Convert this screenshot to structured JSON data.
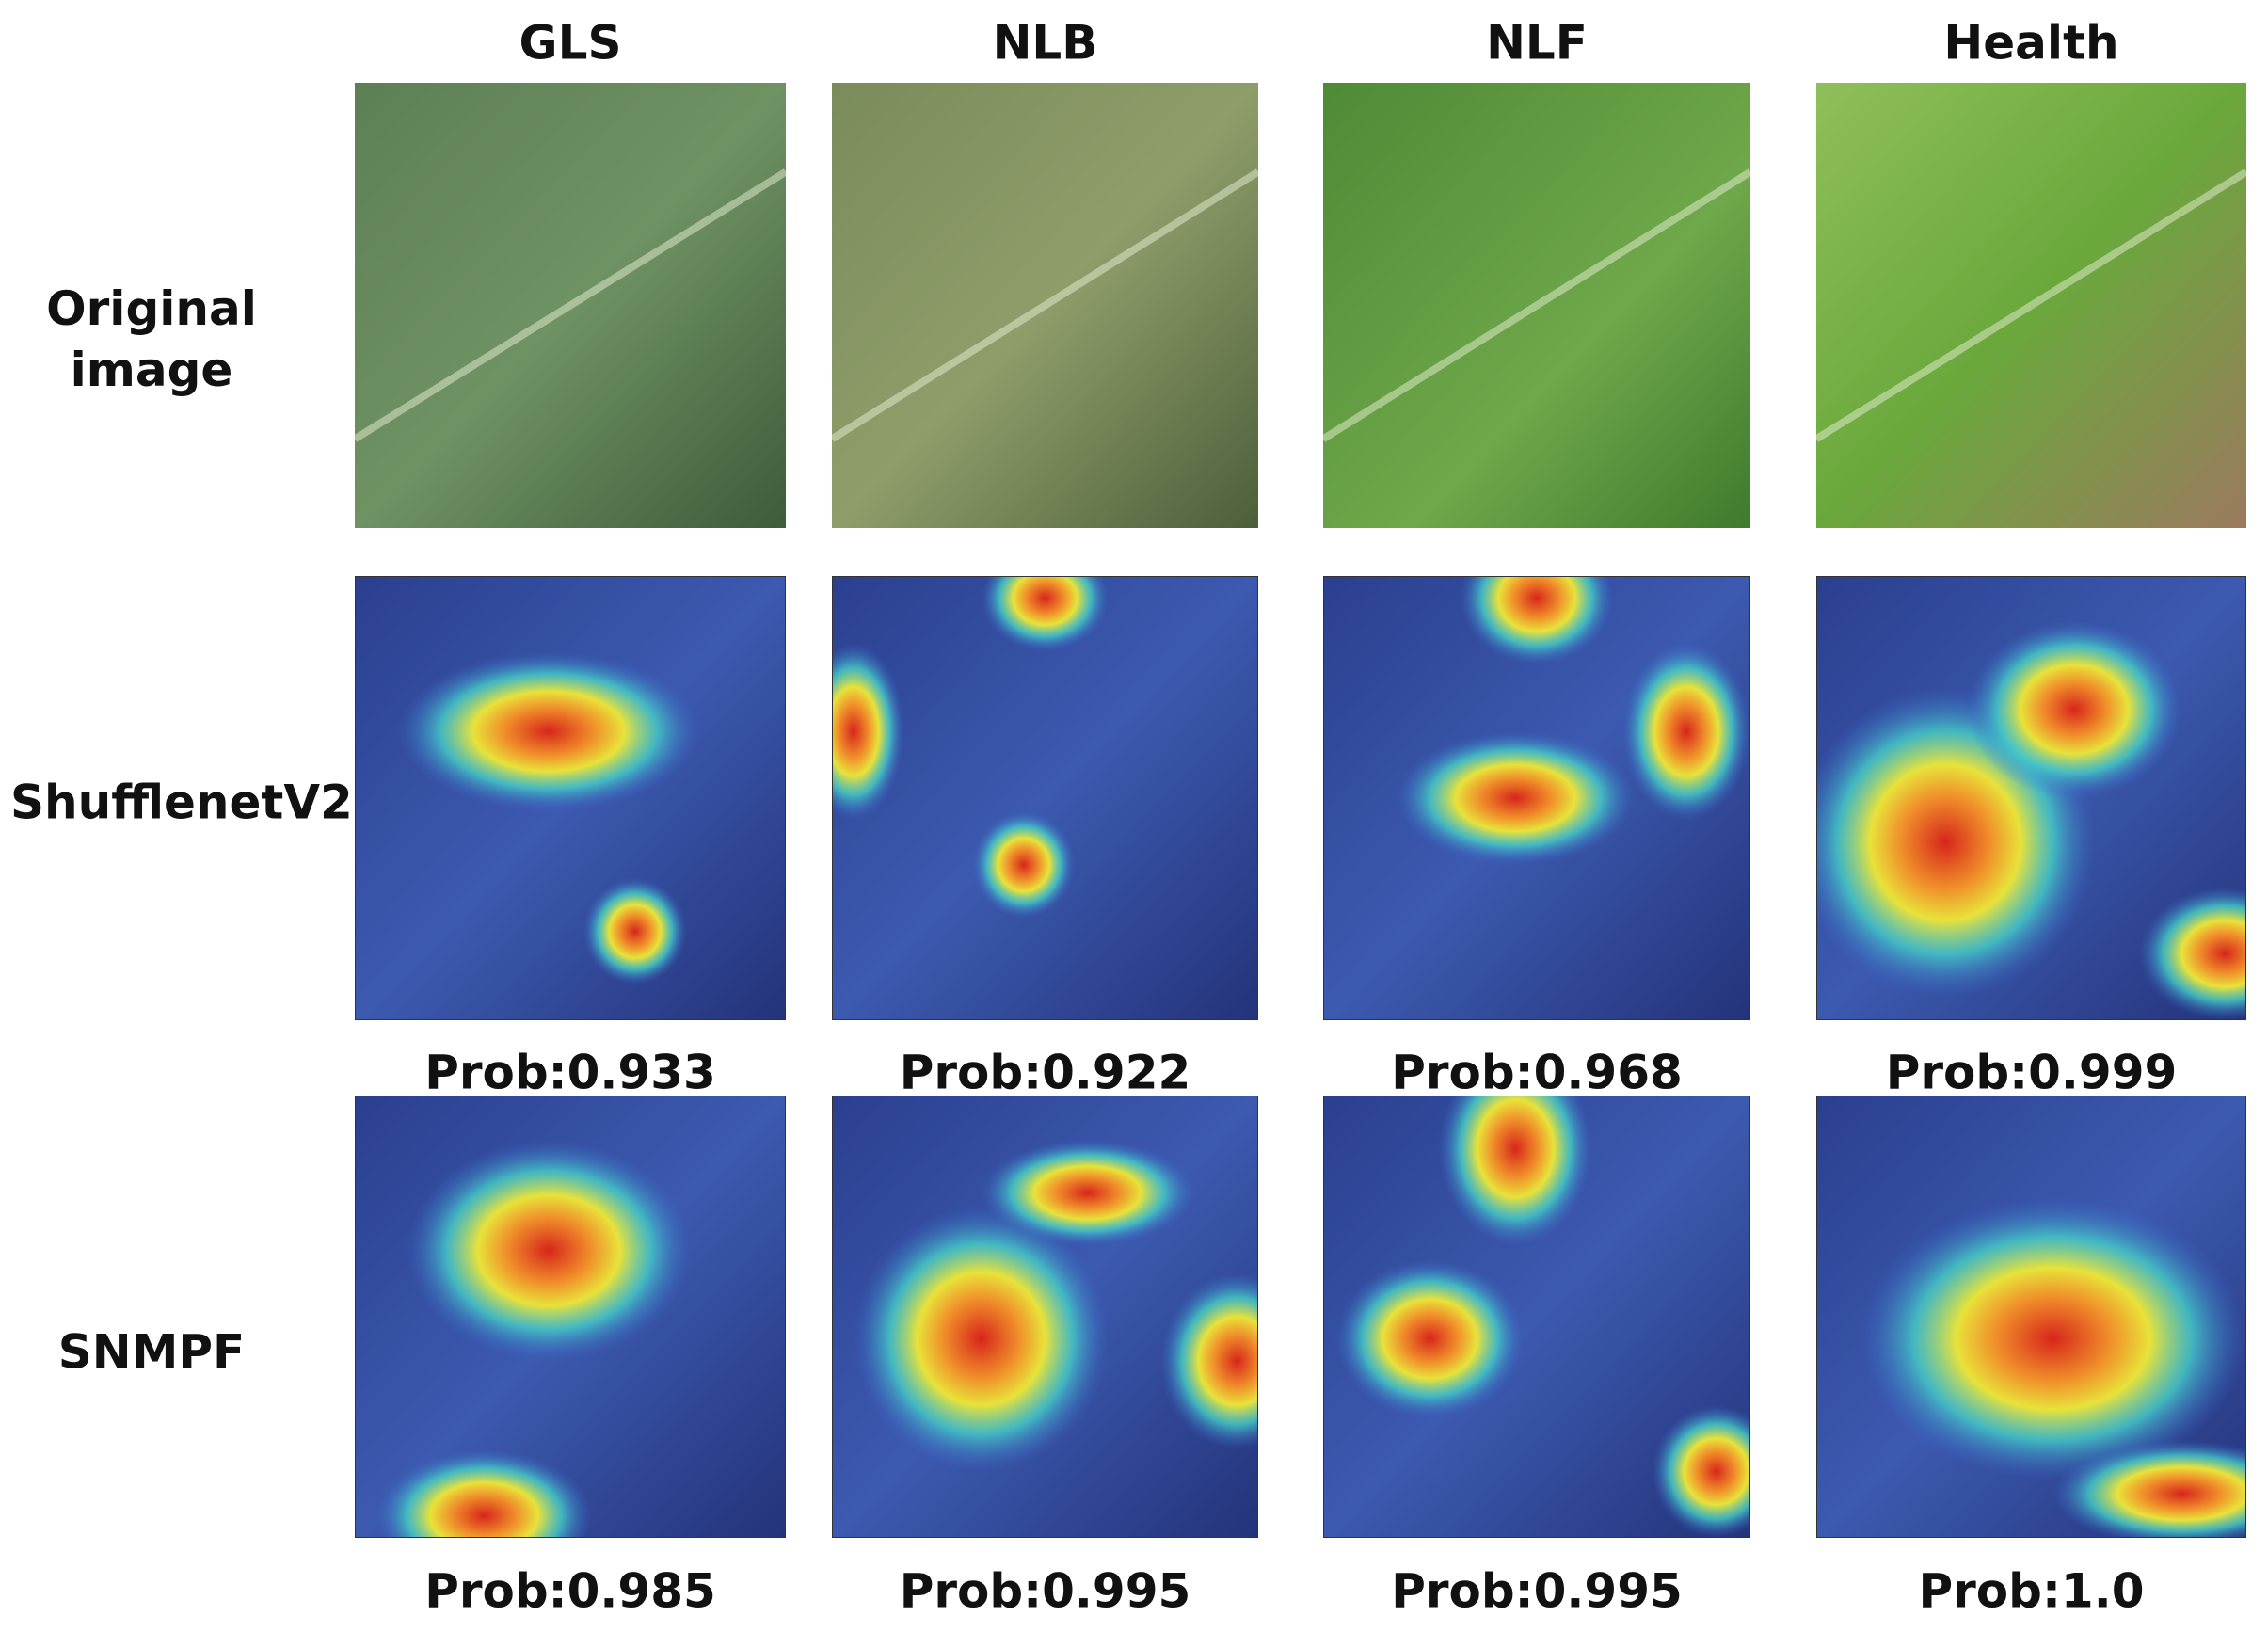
{
  "columns": [
    "GLS",
    "NLB",
    "NLF",
    "Health"
  ],
  "rows": [
    {
      "label": "Original image"
    },
    {
      "label": "ShufflenetV2",
      "probs": [
        "Prob:0.933",
        "Prob:0.922",
        "Prob:0.968",
        "Prob:0.999"
      ]
    },
    {
      "label": "SNMPF",
      "probs": [
        "Prob:0.985",
        "Prob:0.995",
        "Prob:0.995",
        "Prob:1.0"
      ]
    }
  ]
}
